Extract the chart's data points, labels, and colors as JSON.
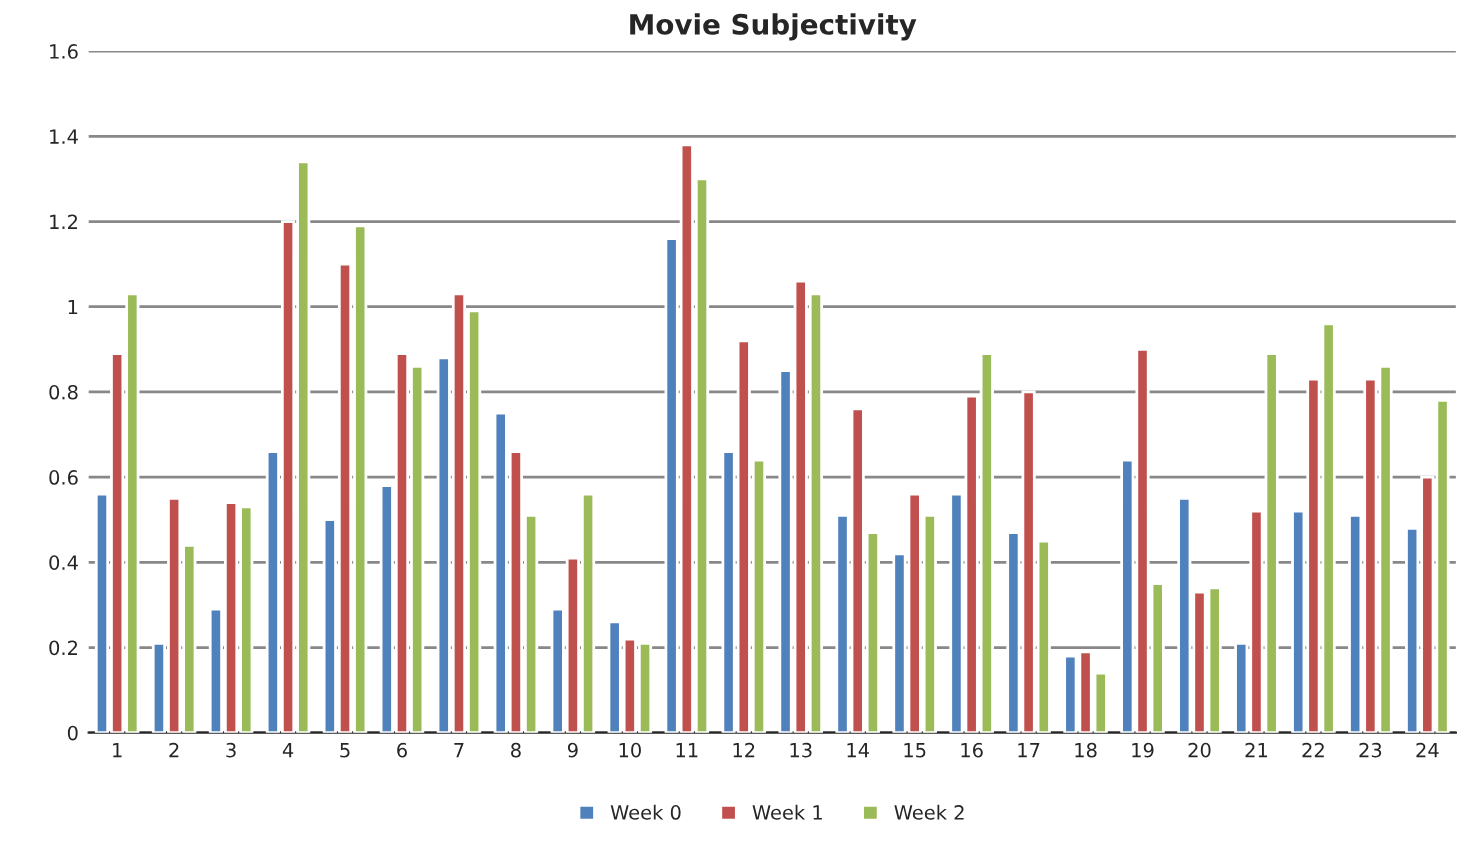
{
  "chart_data": {
    "type": "bar",
    "title": "Movie Subjectivity",
    "categories": [
      "1",
      "2",
      "3",
      "4",
      "5",
      "6",
      "7",
      "8",
      "9",
      "10",
      "11",
      "12",
      "13",
      "14",
      "15",
      "16",
      "17",
      "18",
      "19",
      "20",
      "21",
      "22",
      "23",
      "24"
    ],
    "series": [
      {
        "name": "Week 0",
        "color": "#4f81bd",
        "values": [
          0.56,
          0.21,
          0.29,
          0.66,
          0.5,
          0.58,
          0.88,
          0.75,
          0.29,
          0.26,
          1.16,
          0.66,
          0.85,
          0.51,
          0.42,
          0.56,
          0.47,
          0.18,
          0.64,
          0.55,
          0.21,
          0.52,
          0.51,
          0.48
        ]
      },
      {
        "name": "Week 1",
        "color": "#c0504d",
        "values": [
          0.89,
          0.55,
          0.54,
          1.2,
          1.1,
          0.89,
          1.03,
          0.66,
          0.41,
          0.22,
          1.38,
          0.92,
          1.06,
          0.76,
          0.56,
          0.79,
          0.8,
          0.19,
          0.9,
          0.33,
          0.52,
          0.83,
          0.83,
          0.6
        ]
      },
      {
        "name": "Week 2",
        "color": "#9bbb59",
        "values": [
          1.03,
          0.44,
          0.53,
          1.34,
          1.19,
          0.86,
          0.99,
          0.51,
          0.56,
          0.21,
          1.3,
          0.64,
          1.03,
          0.47,
          0.51,
          0.89,
          0.45,
          0.14,
          0.35,
          0.34,
          0.89,
          0.96,
          0.86,
          0.78
        ]
      }
    ],
    "ylim": [
      0,
      1.6
    ],
    "yticks": [
      0,
      0.2,
      0.4,
      0.6,
      0.8,
      1,
      1.2,
      1.4,
      1.6
    ],
    "grid": "y",
    "legend": "bottom"
  }
}
